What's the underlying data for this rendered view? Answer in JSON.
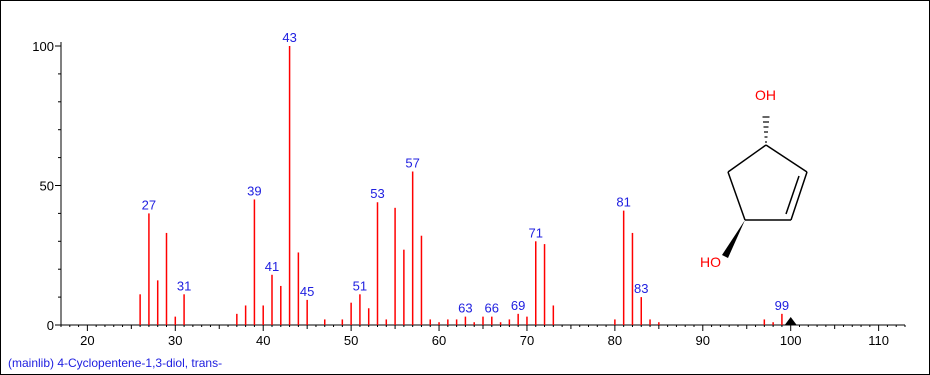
{
  "caption": "(mainlib) 4-Cyclopentene-1,3-diol, trans-",
  "structure": {
    "oh_top": "OH",
    "oh_bottom": "HO"
  },
  "colors": {
    "peak": "#ff0000",
    "peak_label": "#2020e0",
    "axis": "#000000",
    "oh": "#ff0000"
  },
  "icons": {
    "marker": "triangle-marker"
  },
  "chart_data": {
    "type": "bar",
    "xlim": [
      17,
      113
    ],
    "ylim": [
      0,
      100
    ],
    "x_ticks": [
      20,
      30,
      40,
      50,
      60,
      70,
      80,
      90,
      100,
      110
    ],
    "y_ticks": [
      0,
      50,
      100
    ],
    "marker_x": 100,
    "peaks": [
      {
        "mz": 26,
        "intensity": 11
      },
      {
        "mz": 27,
        "intensity": 40,
        "label": "27"
      },
      {
        "mz": 28,
        "intensity": 16
      },
      {
        "mz": 29,
        "intensity": 33
      },
      {
        "mz": 30,
        "intensity": 3
      },
      {
        "mz": 31,
        "intensity": 11,
        "label": "31"
      },
      {
        "mz": 37,
        "intensity": 4
      },
      {
        "mz": 38,
        "intensity": 7
      },
      {
        "mz": 39,
        "intensity": 45,
        "label": "39"
      },
      {
        "mz": 40,
        "intensity": 7
      },
      {
        "mz": 41,
        "intensity": 18,
        "label": "41"
      },
      {
        "mz": 42,
        "intensity": 14
      },
      {
        "mz": 43,
        "intensity": 100,
        "label": "43"
      },
      {
        "mz": 44,
        "intensity": 26
      },
      {
        "mz": 45,
        "intensity": 9,
        "label": "45"
      },
      {
        "mz": 47,
        "intensity": 2
      },
      {
        "mz": 49,
        "intensity": 2
      },
      {
        "mz": 50,
        "intensity": 8
      },
      {
        "mz": 51,
        "intensity": 11,
        "label": "51"
      },
      {
        "mz": 52,
        "intensity": 6
      },
      {
        "mz": 53,
        "intensity": 44,
        "label": "53"
      },
      {
        "mz": 54,
        "intensity": 2
      },
      {
        "mz": 55,
        "intensity": 42
      },
      {
        "mz": 56,
        "intensity": 27
      },
      {
        "mz": 57,
        "intensity": 55,
        "label": "57"
      },
      {
        "mz": 58,
        "intensity": 32
      },
      {
        "mz": 59,
        "intensity": 2
      },
      {
        "mz": 60,
        "intensity": 1
      },
      {
        "mz": 61,
        "intensity": 2
      },
      {
        "mz": 62,
        "intensity": 2
      },
      {
        "mz": 63,
        "intensity": 3,
        "label": "63"
      },
      {
        "mz": 64,
        "intensity": 1
      },
      {
        "mz": 65,
        "intensity": 3
      },
      {
        "mz": 66,
        "intensity": 3,
        "label": "66"
      },
      {
        "mz": 67,
        "intensity": 1
      },
      {
        "mz": 68,
        "intensity": 2
      },
      {
        "mz": 69,
        "intensity": 4,
        "label": "69"
      },
      {
        "mz": 70,
        "intensity": 3
      },
      {
        "mz": 71,
        "intensity": 30,
        "label": "71"
      },
      {
        "mz": 72,
        "intensity": 29
      },
      {
        "mz": 73,
        "intensity": 7
      },
      {
        "mz": 80,
        "intensity": 2
      },
      {
        "mz": 81,
        "intensity": 41,
        "label": "81"
      },
      {
        "mz": 82,
        "intensity": 33
      },
      {
        "mz": 83,
        "intensity": 10,
        "label": "83"
      },
      {
        "mz": 84,
        "intensity": 2
      },
      {
        "mz": 85,
        "intensity": 1
      },
      {
        "mz": 97,
        "intensity": 2
      },
      {
        "mz": 98,
        "intensity": 1
      },
      {
        "mz": 99,
        "intensity": 4,
        "label": "99"
      },
      {
        "mz": 100,
        "intensity": 1
      }
    ]
  }
}
